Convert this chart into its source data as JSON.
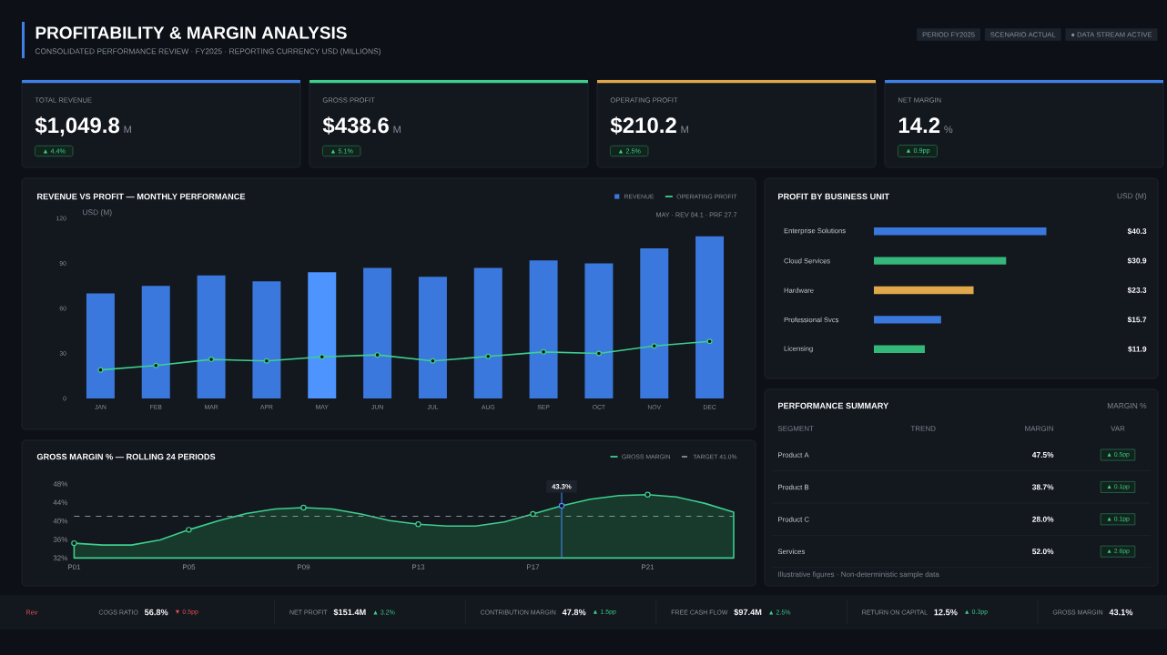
{
  "chart_data": [
    {
      "type": "other",
      "title": "PROFITABILITY & MARGIN ANALYSIS",
      "subtitle": "CONSOLIDATED PERFORMANCE REVIEW · FY2025 · REPORTING CURRENCY USD (MILLIONS)",
      "annotations": [
        "PERIOD FY2025",
        "SCENARIO ACTUAL",
        "● DATA STREAM ACTIVE"
      ]
    },
    {
      "type": "other",
      "title": "TOTAL REVENUE",
      "annotations": [
        "$1,049.8",
        "M",
        "▲ 4.4%"
      ]
    },
    {
      "type": "other",
      "title": "GROSS PROFIT",
      "annotations": [
        "$438.6",
        "M",
        "▲ 5.1%"
      ]
    },
    {
      "type": "other",
      "title": "OPERATING PROFIT",
      "annotations": [
        "$210.2",
        "M",
        "▲ 2.5%"
      ]
    },
    {
      "type": "other",
      "title": "NET MARGIN",
      "annotations": [
        "14.2",
        "%",
        "▲ 0.9pp"
      ]
    },
    {
      "type": "bar",
      "title": "REVENUE VS PROFIT — MONTHLY PERFORMANCE",
      "ylabel": "USD (M)",
      "annotations": [
        "MAY · REV 84.1 · PRF 27.7"
      ],
      "legend": "top right",
      "categories": [
        "JAN",
        "FEB",
        "MAR",
        "APR",
        "MAY",
        "JUN",
        "JUL",
        "AUG",
        "SEP",
        "OCT",
        "NOV",
        "DEC"
      ],
      "ylim": [
        0,
        120
      ],
      "yticks": [
        0,
        30,
        60,
        90,
        120
      ],
      "series": [
        {
          "name": "REVENUE",
          "type": "bar",
          "color": "#3b78dd",
          "colors": [
            "#3b78dd",
            "#3b78dd",
            "#3b78dd",
            "#3b78dd",
            "#4d94ff",
            "#3b78dd",
            "#3b78dd",
            "#3b78dd",
            "#3b78dd",
            "#3b78dd",
            "#3b78dd",
            "#3b78dd"
          ],
          "values": [
            70,
            75,
            82,
            78,
            84.1,
            87,
            81,
            87,
            92,
            90,
            100,
            108
          ]
        },
        {
          "name": "OPERATING PROFIT",
          "type": "line",
          "color": "#3ecf8e",
          "marker": "circle",
          "values": [
            19,
            22,
            26,
            25,
            27.7,
            29,
            25,
            28,
            31,
            30,
            35,
            38
          ]
        }
      ]
    },
    {
      "type": "bar",
      "orientation": "horizontal",
      "title": "PROFIT BY BUSINESS UNIT",
      "annotations": [
        "USD (M)"
      ],
      "categories": [
        "Enterprise Solutions",
        "Cloud Services",
        "Hardware",
        "Professional Svcs",
        "Licensing"
      ],
      "values": [
        40.3,
        30.9,
        23.3,
        15.7,
        11.9
      ],
      "colors": [
        "#3b78dd",
        "#34b87a",
        "#e0a84a",
        "#3b78dd",
        "#34b87a"
      ],
      "value_labels": [
        "$40.3",
        "$30.9",
        "$23.3",
        "$15.7",
        "$11.9"
      ]
    },
    {
      "type": "other",
      "title": "PERFORMANCE SUMMARY",
      "annotations": [
        "MARGIN %",
        "SEGMENT",
        "TREND",
        "MARGIN",
        "VAR",
        "Product A",
        "47.5%",
        "▲ 0.5pp",
        "Product B",
        "38.7%",
        "▲ 0.1pp",
        "Product C",
        "28.0%",
        "▲ 0.1pp",
        "Services",
        "52.0%",
        "▲ 2.6pp",
        "Illustrative figures · Non-deterministic sample data"
      ]
    },
    {
      "type": "area",
      "title": "GROSS MARGIN % — ROLLING 24 PERIODS",
      "legend": "top right",
      "categories": [
        "P01",
        null,
        null,
        null,
        "P05",
        null,
        null,
        null,
        "P09",
        null,
        null,
        null,
        "P13",
        null,
        null,
        null,
        "P17",
        null,
        null,
        null,
        "P21",
        null,
        null,
        null
      ],
      "ylim": [
        32,
        48
      ],
      "yticks": [
        {
          "value": 32,
          "label": "32%"
        },
        {
          "value": 36,
          "label": "36%"
        },
        {
          "value": 40,
          "label": "40%"
        },
        {
          "value": 44,
          "label": "44%"
        },
        {
          "value": 48,
          "label": "48%"
        }
      ],
      "series": [
        {
          "name": "GROSS MARGIN",
          "type": "area",
          "color": "#3ecf8e",
          "values": [
            35.2,
            34.8,
            34.8,
            35.9,
            38.1,
            40.0,
            41.6,
            42.6,
            42.9,
            42.6,
            41.5,
            40.1,
            39.3,
            38.9,
            38.9,
            39.8,
            41.5,
            43.3,
            44.7,
            45.5,
            45.7,
            45.2,
            43.8,
            41.9
          ]
        },
        {
          "type": "scatter",
          "color": "#3ecf8e",
          "marker": "circle",
          "values": [
            35.2,
            null,
            null,
            null,
            38.1,
            null,
            null,
            null,
            42.9,
            null,
            null,
            null,
            39.3,
            null,
            null,
            null,
            41.5,
            null,
            null,
            null,
            45.7,
            null,
            null,
            null
          ]
        },
        {
          "type": "scatter",
          "color": "#4d8dff",
          "marker": "circle",
          "values": [
            null,
            null,
            null,
            null,
            null,
            null,
            null,
            null,
            null,
            null,
            null,
            null,
            null,
            null,
            null,
            null,
            null,
            43.3,
            null,
            null,
            null,
            null,
            null,
            null
          ]
        }
      ],
      "ref_lines": [
        {
          "axis": "y",
          "value": 41,
          "label": "TARGET 41.0%",
          "line_style": "dashed",
          "color": "#8a8f98"
        }
      ],
      "annotations": [
        {
          "text": "43.3%",
          "y": 43.3
        }
      ]
    },
    {
      "type": "other",
      "annotations": [
        "Rev",
        "COGS RATIO",
        "56.8%",
        "▼ 0.5pp",
        "NET PROFIT",
        "$151.4M",
        "▲ 3.2%",
        "CONTRIBUTION MARGIN",
        "47.8%",
        "▲ 1.5pp",
        "FREE CASH FLOW",
        "$97.4M",
        "▲ 2.5%",
        "RETURN ON CAPITAL",
        "12.5%",
        "▲ 0.3pp",
        "GROSS MARGIN",
        "43.1%"
      ]
    }
  ]
}
